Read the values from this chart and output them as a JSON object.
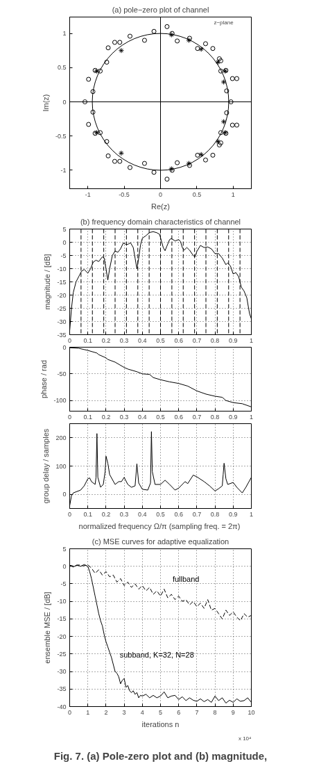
{
  "chart_data": [
    {
      "type": "scatter",
      "title": "(a) pole−zero plot of channel",
      "xlabel": "Re(z)",
      "ylabel": "Im(z)",
      "xlim": [
        -1.25,
        1.25
      ],
      "ylim": [
        -1.27,
        1.24
      ],
      "xticks": [
        -1,
        -0.5,
        0,
        0.5,
        1
      ],
      "yticks": [
        -1,
        -0.5,
        0,
        0.5,
        1
      ],
      "annotations": [
        "z−plane"
      ],
      "ref_lines": [
        {
          "axis": "x",
          "value": 0,
          "color": "#000000",
          "line_style": "solid"
        },
        {
          "axis": "y",
          "value": 0,
          "color": "#000000",
          "line_style": "solid"
        }
      ],
      "series": [
        {
          "type": "scatter",
          "marker": "circle",
          "color": "#000000",
          "x": [
            0.09,
            0.16,
            0.4,
            0.23,
            0.62,
            0.51,
            0.72,
            0.81,
            0.83,
            0.83,
            0.9,
            0.99,
            1.05,
            0.91,
            0.97,
            -0.09,
            -0.22,
            -0.42,
            -0.56,
            -0.63,
            -0.72,
            -0.74,
            -0.9,
            -0.83,
            -0.99,
            -0.93,
            -1.04,
            0.09,
            0.16,
            0.4,
            0.23,
            0.62,
            0.51,
            0.72,
            0.81,
            0.83,
            0.83,
            0.9,
            0.99,
            1.05,
            0.91,
            -0.09,
            -0.22,
            -0.42,
            -0.56,
            -0.63,
            -0.72,
            -0.74,
            -0.9,
            -0.83,
            -0.99,
            -0.93
          ],
          "values": [
            1.1,
            1.0,
            0.93,
            0.89,
            0.85,
            0.78,
            0.78,
            0.63,
            0.6,
            0.45,
            0.46,
            0.34,
            0.34,
            0.16,
            0.0,
            1.03,
            0.9,
            0.96,
            0.87,
            0.87,
            0.79,
            0.58,
            0.46,
            0.45,
            0.33,
            0.15,
            0.0,
            -1.13,
            -1.0,
            -0.93,
            -0.89,
            -0.85,
            -0.78,
            -0.78,
            -0.63,
            -0.6,
            -0.45,
            -0.46,
            -0.34,
            -0.34,
            -0.16,
            -1.03,
            -0.9,
            -0.96,
            -0.87,
            -0.87,
            -0.79,
            -0.58,
            -0.46,
            -0.45,
            -0.33,
            -0.15
          ]
        },
        {
          "type": "scatter",
          "marker": "cross",
          "color": "#000000",
          "x": [
            0.15,
            0.39,
            0.56,
            0.79,
            0.89,
            0.87,
            -0.54,
            -0.88,
            0.15,
            0.39,
            0.56,
            0.79,
            0.89,
            0.87,
            -0.54,
            -0.88
          ],
          "values": [
            0.98,
            0.9,
            0.77,
            0.58,
            0.45,
            0.29,
            0.75,
            0.45,
            -0.98,
            -0.9,
            -0.77,
            -0.58,
            -0.45,
            -0.29,
            -0.75,
            -0.45
          ]
        }
      ]
    },
    {
      "type": "line",
      "title": "(b) frequency domain characteristics of channel",
      "ylabel": "magnitude / [dB]",
      "xlim": [
        0,
        1
      ],
      "ylim": [
        -35,
        5
      ],
      "xticks": [
        0,
        0.1,
        0.2,
        0.3,
        0.4,
        0.5,
        0.6,
        0.7,
        0.8,
        0.9,
        1
      ],
      "yticks": [
        -35,
        -30,
        -25,
        -20,
        -15,
        -10,
        -5,
        0,
        5
      ],
      "grid": true,
      "line_style": "solid",
      "ref_lines": [
        {
          "axis": "x",
          "value": 0.0625,
          "line_style": "dashed"
        },
        {
          "axis": "x",
          "value": 0.125,
          "line_style": "dashed"
        },
        {
          "axis": "x",
          "value": 0.1875,
          "line_style": "dashed"
        },
        {
          "axis": "x",
          "value": 0.25,
          "line_style": "dashed"
        },
        {
          "axis": "x",
          "value": 0.3125,
          "line_style": "dashed"
        },
        {
          "axis": "x",
          "value": 0.375,
          "line_style": "dashed"
        },
        {
          "axis": "x",
          "value": 0.4375,
          "line_style": "dashed"
        },
        {
          "axis": "x",
          "value": 0.5,
          "line_style": "dashed"
        },
        {
          "axis": "x",
          "value": 0.5625,
          "line_style": "dashed"
        },
        {
          "axis": "x",
          "value": 0.625,
          "line_style": "dashed"
        },
        {
          "axis": "x",
          "value": 0.6875,
          "line_style": "dashed"
        },
        {
          "axis": "x",
          "value": 0.75,
          "line_style": "dashed"
        },
        {
          "axis": "x",
          "value": 0.8125,
          "line_style": "dashed"
        },
        {
          "axis": "x",
          "value": 0.875,
          "line_style": "dashed"
        },
        {
          "axis": "x",
          "value": 0.9375,
          "line_style": "dashed"
        }
      ],
      "series": [
        {
          "color": "#000000",
          "x": [
            0,
            0.01,
            0.02,
            0.035,
            0.05,
            0.065,
            0.08,
            0.1,
            0.115,
            0.13,
            0.145,
            0.16,
            0.18,
            0.19,
            0.2,
            0.21,
            0.22,
            0.235,
            0.25,
            0.265,
            0.28,
            0.295,
            0.31,
            0.32,
            0.335,
            0.35,
            0.36,
            0.37,
            0.38,
            0.39,
            0.4,
            0.42,
            0.44,
            0.46,
            0.48,
            0.495,
            0.505,
            0.515,
            0.525,
            0.535,
            0.55,
            0.56,
            0.58,
            0.6,
            0.61,
            0.62,
            0.63,
            0.645,
            0.66,
            0.68,
            0.69,
            0.7,
            0.72,
            0.74,
            0.76,
            0.78,
            0.8,
            0.82,
            0.84,
            0.86,
            0.87,
            0.885,
            0.9,
            0.915,
            0.93,
            0.945,
            0.96,
            0.975,
            0.99,
            1.0
          ],
          "values": [
            -33.5,
            -25,
            -19,
            -15,
            -13,
            -11,
            -10.3,
            -11.7,
            -10,
            -7.5,
            -6.8,
            -7.3,
            -5.5,
            -6,
            -10,
            -14.3,
            -10,
            -5,
            -3.3,
            -3.8,
            -2.5,
            -0.3,
            -0.8,
            -0.8,
            -0.2,
            -2,
            -6,
            -10,
            -6,
            -1,
            1.5,
            2.5,
            3.7,
            4,
            3.6,
            3,
            0.5,
            -2,
            -3.2,
            -1.5,
            1,
            1.4,
            0.5,
            1,
            0.3,
            -2,
            -3,
            -2,
            -3,
            -5,
            -5.5,
            -3.5,
            -1.2,
            -2,
            -1.8,
            -2.5,
            -4.3,
            -4.3,
            -6,
            -8.5,
            -7.8,
            -9,
            -12,
            -11.5,
            -13,
            -17,
            -18.5,
            -21,
            -27,
            -29
          ]
        }
      ]
    },
    {
      "type": "line",
      "ylabel": "phase / rad",
      "xlim": [
        0,
        1
      ],
      "ylim": [
        -120,
        0
      ],
      "xticks": [
        0,
        0.1,
        0.2,
        0.3,
        0.4,
        0.5,
        0.6,
        0.7,
        0.8,
        0.9,
        1
      ],
      "yticks": [
        -100,
        -50,
        0
      ],
      "grid": true,
      "line_style": "solid",
      "series": [
        {
          "color": "#000000",
          "x": [
            0,
            0.05,
            0.1,
            0.15,
            0.16,
            0.2,
            0.21,
            0.25,
            0.3,
            0.32,
            0.37,
            0.4,
            0.44,
            0.46,
            0.5,
            0.55,
            0.6,
            0.65,
            0.7,
            0.75,
            0.8,
            0.84,
            0.86,
            0.9,
            0.95,
            1.0
          ],
          "values": [
            -1,
            -2,
            -6,
            -11,
            -14,
            -20,
            -23,
            -28,
            -38,
            -41,
            -46,
            -50,
            -51,
            -57,
            -61,
            -65,
            -68,
            -73,
            -82,
            -88,
            -92,
            -94,
            -100,
            -104,
            -106,
            -112
          ]
        }
      ]
    },
    {
      "type": "line",
      "xlabel": "normalized frequency Ω/π  (sampling freq. = 2π)",
      "ylabel": "group delay / samples",
      "xlim": [
        0,
        1
      ],
      "ylim": [
        -50,
        250
      ],
      "xticks": [
        0,
        0.1,
        0.2,
        0.3,
        0.4,
        0.5,
        0.6,
        0.7,
        0.8,
        0.9,
        1
      ],
      "yticks": [
        0,
        100,
        200
      ],
      "grid": true,
      "line_style": "solid",
      "series": [
        {
          "color": "#000000",
          "x": [
            0,
            0.01,
            0.02,
            0.04,
            0.06,
            0.08,
            0.1,
            0.11,
            0.12,
            0.14,
            0.145,
            0.15,
            0.155,
            0.17,
            0.185,
            0.195,
            0.2,
            0.21,
            0.22,
            0.25,
            0.27,
            0.285,
            0.3,
            0.32,
            0.34,
            0.36,
            0.37,
            0.38,
            0.4,
            0.43,
            0.445,
            0.45,
            0.455,
            0.47,
            0.5,
            0.525,
            0.55,
            0.58,
            0.6,
            0.635,
            0.65,
            0.68,
            0.7,
            0.74,
            0.77,
            0.8,
            0.82,
            0.84,
            0.845,
            0.85,
            0.86,
            0.87,
            0.9,
            0.92,
            0.95,
            0.97,
            1.0
          ],
          "values": [
            -40,
            -5,
            5,
            10,
            15,
            30,
            55,
            58,
            45,
            35,
            60,
            215,
            60,
            25,
            35,
            80,
            135,
            110,
            70,
            35,
            45,
            45,
            60,
            35,
            25,
            30,
            108,
            40,
            18,
            15,
            40,
            222,
            80,
            35,
            35,
            50,
            35,
            15,
            22,
            45,
            38,
            68,
            62,
            45,
            30,
            12,
            20,
            30,
            70,
            110,
            55,
            35,
            42,
            25,
            5,
            25,
            60
          ]
        }
      ]
    },
    {
      "type": "line",
      "title": "(c) MSE curves for adaptive equalization",
      "xlabel": "iterations n",
      "ylabel": "ensemble MSE / [dB]",
      "xlim": [
        0,
        10
      ],
      "ylim": [
        -40,
        5
      ],
      "xticks": [
        0,
        1,
        2,
        3,
        4,
        5,
        6,
        7,
        8,
        9,
        10
      ],
      "yticks": [
        -40,
        -35,
        -30,
        -25,
        -20,
        -15,
        -10,
        -5,
        0,
        5
      ],
      "grid": true,
      "annotations": [
        "x 10⁴",
        "Fig. 7. (a) Pole-zero plot and (b) magnitude,"
      ],
      "series": [
        {
          "name": "fullband",
          "line_style": "dashed",
          "color": "#000000",
          "x": [
            0,
            0.25,
            0.5,
            0.75,
            1.0,
            1.2,
            1.4,
            1.6,
            1.8,
            2.0,
            2.2,
            2.4,
            2.6,
            2.8,
            3.0,
            3.2,
            3.4,
            3.6,
            3.8,
            4.0,
            4.2,
            4.4,
            4.6,
            4.8,
            5.0,
            5.2,
            5.4,
            5.6,
            5.8,
            6.0,
            6.2,
            6.4,
            6.6,
            6.8,
            7.0,
            7.2,
            7.4,
            7.6,
            7.8,
            8.0,
            8.2,
            8.4,
            8.6,
            8.8,
            9.0,
            9.2,
            9.4,
            9.6,
            9.8,
            10
          ],
          "values": [
            0.3,
            0,
            0.4,
            0.1,
            0.4,
            -0.5,
            -2,
            -1,
            -2.5,
            -1.5,
            -3,
            -2.5,
            -4.5,
            -3.5,
            -5.5,
            -4.5,
            -6,
            -5,
            -6.5,
            -5.5,
            -7,
            -6,
            -8,
            -7,
            -8.5,
            -6.5,
            -9,
            -8,
            -9.5,
            -8.5,
            -10,
            -9.5,
            -11,
            -10,
            -11.5,
            -10.5,
            -12,
            -9.5,
            -12.5,
            -12,
            -13.5,
            -15,
            -12.5,
            -14,
            -13,
            -14.5,
            -15.5,
            -13.5,
            -14.5,
            -14
          ]
        },
        {
          "name": "subband, K=32, N=28",
          "line_style": "solid",
          "color": "#000000",
          "x": [
            0,
            0.2,
            0.4,
            0.6,
            0.8,
            1.0,
            1.1,
            1.2,
            1.3,
            1.4,
            1.5,
            1.6,
            1.7,
            1.8,
            1.9,
            2.0,
            2.1,
            2.2,
            2.3,
            2.4,
            2.5,
            2.6,
            2.7,
            2.8,
            2.9,
            3.0,
            3.1,
            3.2,
            3.3,
            3.4,
            3.5,
            3.6,
            3.7,
            3.8,
            3.9,
            4.0,
            4.2,
            4.4,
            4.6,
            4.8,
            5.0,
            5.2,
            5.4,
            5.6,
            5.8,
            6.0,
            6.2,
            6.4,
            6.6,
            6.8,
            7.0,
            7.2,
            7.4,
            7.6,
            7.8,
            8.0,
            8.2,
            8.4,
            8.6,
            8.8,
            9.0,
            9.2,
            9.4,
            9.6,
            9.8,
            10
          ],
          "values": [
            0.3,
            -0.2,
            0.4,
            0,
            0.5,
            0,
            -1.5,
            -3.5,
            -6,
            -8.5,
            -11,
            -13.5,
            -15.5,
            -17,
            -19.5,
            -21.5,
            -23,
            -24.5,
            -26,
            -28,
            -30,
            -30.5,
            -31.5,
            -33.5,
            -32.5,
            -32,
            -34.5,
            -34,
            -35.5,
            -36,
            -35.5,
            -36.5,
            -36,
            -37.5,
            -36.8,
            -37,
            -36.5,
            -37.5,
            -36.8,
            -37.5,
            -37,
            -35.8,
            -37.5,
            -37,
            -36.8,
            -38,
            -37.2,
            -38.3,
            -37.5,
            -38.2,
            -38.5,
            -37.8,
            -38.6,
            -38,
            -38.8,
            -37,
            -38.3,
            -37.5,
            -39,
            -38.2,
            -38.8,
            -37.8,
            -38.5,
            -38.3,
            -37.5,
            -38.8
          ]
        }
      ]
    }
  ]
}
